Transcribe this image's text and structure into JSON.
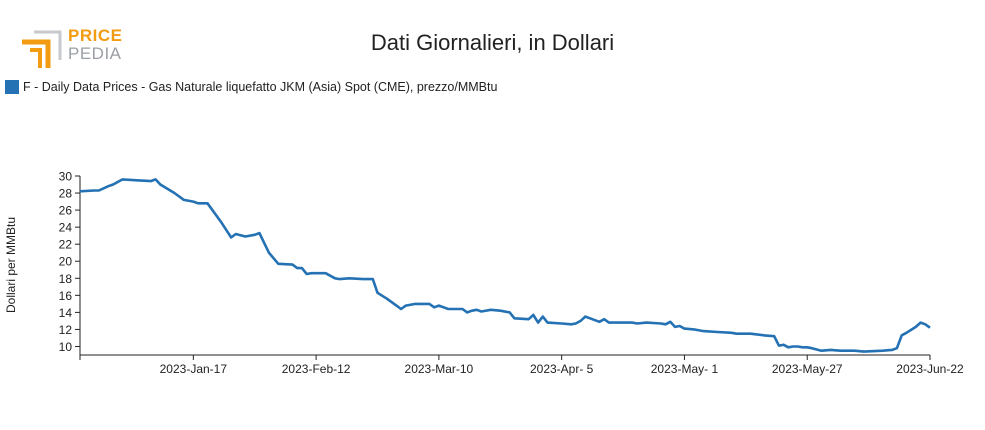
{
  "brand": {
    "word1": "PRICE",
    "word2": "PEDIA",
    "accent": "#f39c12",
    "gray": "#9aa0a6"
  },
  "chart_data": {
    "type": "line",
    "title": "Dati Giornalieri, in Dollari",
    "ylabel": "Dollari per MMBtu",
    "xlabel": "",
    "ylim": [
      9,
      30
    ],
    "yticks": [
      10,
      12,
      14,
      16,
      18,
      20,
      22,
      24,
      26,
      28,
      30
    ],
    "xlim": [
      "2022-12-24",
      "2023-06-22"
    ],
    "xticks": [
      "2023-01-17",
      "2023-02-12",
      "2023-03-10",
      "2023-04-05",
      "2023-05-01",
      "2023-05-27",
      "2023-06-22"
    ],
    "xtick_labels": [
      "2023-Jan-17",
      "2023-Feb-12",
      "2023-Mar-10",
      "2023-Apr- 5",
      "2023-May- 1",
      "2023-May-27",
      "2023-Jun-22"
    ],
    "grid": false,
    "legend_position": "top-left",
    "series": [
      {
        "name": "F - Daily Data Prices - Gas Naturale liquefatto JKM (Asia) Spot (CME), prezzo/MMBtu",
        "color": "#2471b3",
        "points": [
          [
            "2022-12-24",
            28.2
          ],
          [
            "2022-12-27",
            28.3
          ],
          [
            "2022-12-28",
            28.3
          ],
          [
            "2022-12-30",
            28.8
          ],
          [
            "2022-12-31",
            29.0
          ],
          [
            "2023-01-02",
            29.6
          ],
          [
            "2023-01-05",
            29.5
          ],
          [
            "2023-01-08",
            29.4
          ],
          [
            "2023-01-09",
            29.6
          ],
          [
            "2023-01-10",
            29.0
          ],
          [
            "2023-01-13",
            28.0
          ],
          [
            "2023-01-15",
            27.2
          ],
          [
            "2023-01-17",
            27.0
          ],
          [
            "2023-01-18",
            26.8
          ],
          [
            "2023-01-20",
            26.8
          ],
          [
            "2023-01-23",
            24.5
          ],
          [
            "2023-01-25",
            22.8
          ],
          [
            "2023-01-26",
            23.2
          ],
          [
            "2023-01-28",
            22.9
          ],
          [
            "2023-01-30",
            23.1
          ],
          [
            "2023-01-31",
            23.3
          ],
          [
            "2023-02-02",
            21.0
          ],
          [
            "2023-02-04",
            19.7
          ],
          [
            "2023-02-07",
            19.6
          ],
          [
            "2023-02-08",
            19.2
          ],
          [
            "2023-02-09",
            19.2
          ],
          [
            "2023-02-10",
            18.5
          ],
          [
            "2023-02-11",
            18.6
          ],
          [
            "2023-02-14",
            18.6
          ],
          [
            "2023-02-16",
            18.0
          ],
          [
            "2023-02-17",
            17.9
          ],
          [
            "2023-02-19",
            18.0
          ],
          [
            "2023-02-22",
            17.9
          ],
          [
            "2023-02-24",
            17.9
          ],
          [
            "2023-02-25",
            16.3
          ],
          [
            "2023-02-27",
            15.6
          ],
          [
            "2023-03-01",
            14.8
          ],
          [
            "2023-03-02",
            14.4
          ],
          [
            "2023-03-03",
            14.8
          ],
          [
            "2023-03-05",
            15.0
          ],
          [
            "2023-03-07",
            15.0
          ],
          [
            "2023-03-08",
            15.0
          ],
          [
            "2023-03-09",
            14.6
          ],
          [
            "2023-03-10",
            14.8
          ],
          [
            "2023-03-11",
            14.6
          ],
          [
            "2023-03-12",
            14.4
          ],
          [
            "2023-03-15",
            14.4
          ],
          [
            "2023-03-16",
            14.0
          ],
          [
            "2023-03-17",
            14.2
          ],
          [
            "2023-03-18",
            14.3
          ],
          [
            "2023-03-19",
            14.1
          ],
          [
            "2023-03-21",
            14.3
          ],
          [
            "2023-03-23",
            14.2
          ],
          [
            "2023-03-25",
            14.0
          ],
          [
            "2023-03-26",
            13.3
          ],
          [
            "2023-03-29",
            13.2
          ],
          [
            "2023-03-30",
            13.7
          ],
          [
            "2023-03-31",
            12.8
          ],
          [
            "2023-04-01",
            13.5
          ],
          [
            "2023-04-02",
            12.8
          ],
          [
            "2023-04-05",
            12.7
          ],
          [
            "2023-04-07",
            12.6
          ],
          [
            "2023-04-08",
            12.7
          ],
          [
            "2023-04-09",
            13.0
          ],
          [
            "2023-04-10",
            13.5
          ],
          [
            "2023-04-11",
            13.3
          ],
          [
            "2023-04-13",
            12.9
          ],
          [
            "2023-04-14",
            13.2
          ],
          [
            "2023-04-15",
            12.8
          ],
          [
            "2023-04-17",
            12.8
          ],
          [
            "2023-04-20",
            12.8
          ],
          [
            "2023-04-21",
            12.7
          ],
          [
            "2023-04-23",
            12.8
          ],
          [
            "2023-04-26",
            12.7
          ],
          [
            "2023-04-27",
            12.6
          ],
          [
            "2023-04-28",
            12.9
          ],
          [
            "2023-04-29",
            12.3
          ],
          [
            "2023-04-30",
            12.4
          ],
          [
            "2023-05-01",
            12.1
          ],
          [
            "2023-05-03",
            12.0
          ],
          [
            "2023-05-05",
            11.8
          ],
          [
            "2023-05-08",
            11.7
          ],
          [
            "2023-05-11",
            11.6
          ],
          [
            "2023-05-12",
            11.5
          ],
          [
            "2023-05-15",
            11.5
          ],
          [
            "2023-05-18",
            11.3
          ],
          [
            "2023-05-20",
            11.2
          ],
          [
            "2023-05-21",
            10.1
          ],
          [
            "2023-05-22",
            10.2
          ],
          [
            "2023-05-23",
            9.9
          ],
          [
            "2023-05-24",
            10.0
          ],
          [
            "2023-05-25",
            10.0
          ],
          [
            "2023-05-26",
            9.9
          ],
          [
            "2023-05-27",
            9.9
          ],
          [
            "2023-05-28",
            9.8
          ],
          [
            "2023-05-30",
            9.5
          ],
          [
            "2023-06-01",
            9.6
          ],
          [
            "2023-06-03",
            9.5
          ],
          [
            "2023-06-06",
            9.5
          ],
          [
            "2023-06-08",
            9.4
          ],
          [
            "2023-06-12",
            9.5
          ],
          [
            "2023-06-14",
            9.6
          ],
          [
            "2023-06-15",
            9.8
          ],
          [
            "2023-06-16",
            11.3
          ],
          [
            "2023-06-17",
            11.6
          ],
          [
            "2023-06-19",
            12.3
          ],
          [
            "2023-06-20",
            12.8
          ],
          [
            "2023-06-21",
            12.6
          ],
          [
            "2023-06-22",
            12.2
          ]
        ]
      }
    ]
  }
}
